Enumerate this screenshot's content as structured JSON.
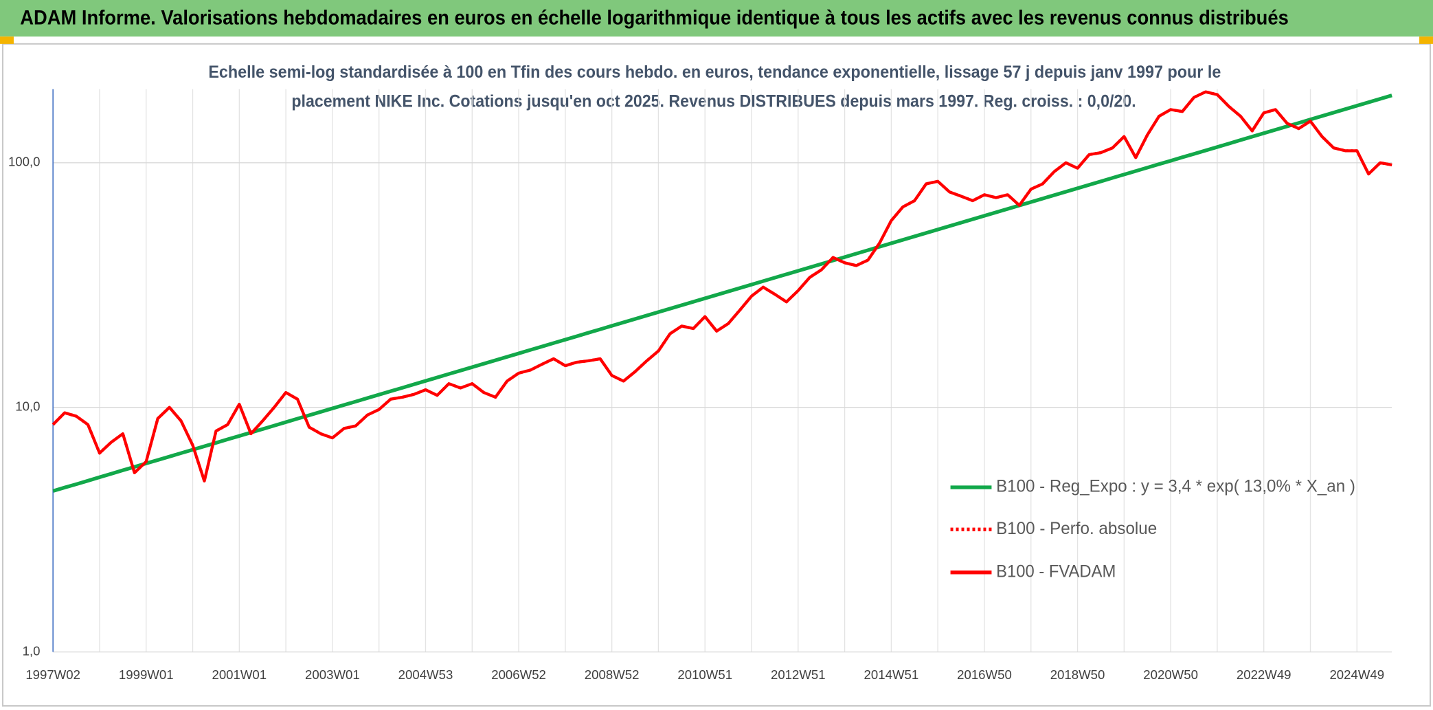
{
  "chart_data": {
    "type": "line",
    "title": "ADAM Informe. Valorisations hebdomadaires en euros en échelle logarithmique identique à tous les actifs avec les revenus connus distribués",
    "subtitle": [
      "Echelle semi-log standardisée à 100 en Tfin des cours hebdo. en euros, tendance exponentielle, lissage 57 j depuis janv 1997 pour le",
      "placement NIKE Inc. Cotations jusqu'en oct 2025. Revenus DISTRIBUES depuis mars 1997. Reg. croiss. : 0,0/20."
    ],
    "categories": [
      "1997W02",
      null,
      null,
      null,
      null,
      null,
      null,
      null,
      "1999W01",
      null,
      null,
      null,
      null,
      null,
      null,
      null,
      "2001W01",
      null,
      null,
      null,
      null,
      null,
      null,
      null,
      "2003W01",
      null,
      null,
      null,
      null,
      null,
      null,
      null,
      "2004W53",
      null,
      null,
      null,
      null,
      null,
      null,
      null,
      "2006W52",
      null,
      null,
      null,
      null,
      null,
      null,
      null,
      "2008W52",
      null,
      null,
      null,
      null,
      null,
      null,
      null,
      "2010W51",
      null,
      null,
      null,
      null,
      null,
      null,
      null,
      "2012W51",
      null,
      null,
      null,
      null,
      null,
      null,
      null,
      "2014W51",
      null,
      null,
      null,
      null,
      null,
      null,
      null,
      "2016W50",
      null,
      null,
      null,
      null,
      null,
      null,
      null,
      "2018W50",
      null,
      null,
      null,
      null,
      null,
      null,
      null,
      "2020W50",
      null,
      null,
      null,
      null,
      null,
      null,
      null,
      "2022W49",
      null,
      null,
      null,
      null,
      null,
      null,
      null,
      "2024W49",
      null,
      null,
      null
    ],
    "series": [
      {
        "name": "B100 - Reg_Expo : y = 3,4 * exp( 13,0% *  X_an )",
        "color": "#12a84a",
        "line_style": "solid",
        "values": [
          4.55,
          4.7,
          4.85,
          5.01,
          5.18,
          5.35,
          5.53,
          5.71,
          5.9,
          6.09,
          6.29,
          6.5,
          6.71,
          6.93,
          7.16,
          7.4,
          7.64,
          7.89,
          8.15,
          8.42,
          8.7,
          8.99,
          9.28,
          9.59,
          9.9,
          10.23,
          10.56,
          10.91,
          11.27,
          11.64,
          12.02,
          12.42,
          12.83,
          13.25,
          13.69,
          14.14,
          14.6,
          15.08,
          15.58,
          16.09,
          16.62,
          17.17,
          17.73,
          18.32,
          18.92,
          19.54,
          20.19,
          20.85,
          21.54,
          22.25,
          22.98,
          23.74,
          24.52,
          25.33,
          26.16,
          27.02,
          27.91,
          28.83,
          29.78,
          30.76,
          31.77,
          32.82,
          33.9,
          35.01,
          36.16,
          37.35,
          38.58,
          39.85,
          41.16,
          42.52,
          43.92,
          45.36,
          46.86,
          48.4,
          50.0,
          51.64,
          53.34,
          55.1,
          56.91,
          58.78,
          60.72,
          62.72,
          64.78,
          66.91,
          69.11,
          71.39,
          73.74,
          76.16,
          78.67,
          81.26,
          83.93,
          86.7,
          89.55,
          92.5,
          95.54,
          98.69,
          101.9,
          105.3,
          108.7,
          112.3,
          116.0,
          119.8,
          123.8,
          127.9,
          132.1,
          136.4,
          140.9,
          145.5,
          150.3,
          155.3,
          160.4,
          165.7,
          171.1,
          176.7,
          182.6,
          188.6
        ]
      },
      {
        "name": "B100 - Perfo. absolue",
        "color": "#ff0000",
        "line_style": "dotted",
        "values": [
          8.5,
          9.5,
          9.2,
          8.5,
          6.5,
          7.2,
          7.8,
          5.4,
          6.0,
          9.0,
          10.0,
          8.8,
          7.0,
          5.0,
          8.0,
          8.5,
          10.3,
          7.8,
          8.8,
          10.0,
          11.5,
          10.8,
          8.3,
          7.8,
          7.5,
          8.2,
          8.4,
          9.3,
          9.8,
          10.8,
          11.0,
          11.3,
          11.8,
          11.2,
          12.5,
          12.0,
          12.5,
          11.5,
          11.0,
          12.8,
          13.8,
          14.2,
          15.0,
          15.8,
          14.8,
          15.3,
          15.5,
          15.8,
          13.5,
          12.8,
          14.0,
          15.5,
          17.0,
          20.0,
          21.5,
          21.0,
          23.5,
          20.5,
          22.0,
          25.0,
          28.5,
          31.0,
          29.0,
          27.0,
          30.0,
          34.0,
          36.5,
          41.0,
          39.0,
          38.0,
          40.0,
          47.0,
          58.0,
          66.0,
          70.0,
          82.0,
          84.0,
          76.0,
          73.0,
          70.0,
          74.0,
          72.0,
          74.0,
          67.0,
          78.0,
          82.0,
          92.0,
          100.0,
          95.0,
          108.0,
          110.0,
          115.0,
          128.0,
          105.0,
          130.0,
          155.0,
          165.0,
          162.0,
          185.0,
          195.0,
          190.0,
          170.0,
          155.0,
          135.0,
          160.0,
          165.0,
          145.0,
          138.0,
          148.0,
          128.0,
          115.0,
          112.0,
          112.0,
          90.0,
          100.0,
          98.0
        ]
      },
      {
        "name": "B100 - FVADAM",
        "color": "#ff0000",
        "line_style": "solid",
        "values": [
          8.5,
          9.5,
          9.2,
          8.5,
          6.5,
          7.2,
          7.8,
          5.4,
          6.0,
          9.0,
          10.0,
          8.8,
          7.0,
          5.0,
          8.0,
          8.5,
          10.3,
          7.8,
          8.8,
          10.0,
          11.5,
          10.8,
          8.3,
          7.8,
          7.5,
          8.2,
          8.4,
          9.3,
          9.8,
          10.8,
          11.0,
          11.3,
          11.8,
          11.2,
          12.5,
          12.0,
          12.5,
          11.5,
          11.0,
          12.8,
          13.8,
          14.2,
          15.0,
          15.8,
          14.8,
          15.3,
          15.5,
          15.8,
          13.5,
          12.8,
          14.0,
          15.5,
          17.0,
          20.0,
          21.5,
          21.0,
          23.5,
          20.5,
          22.0,
          25.0,
          28.5,
          31.0,
          29.0,
          27.0,
          30.0,
          34.0,
          36.5,
          41.0,
          39.0,
          38.0,
          40.0,
          47.0,
          58.0,
          66.0,
          70.0,
          82.0,
          84.0,
          76.0,
          73.0,
          70.0,
          74.0,
          72.0,
          74.0,
          67.0,
          78.0,
          82.0,
          92.0,
          100.0,
          95.0,
          108.0,
          110.0,
          115.0,
          128.0,
          105.0,
          130.0,
          155.0,
          165.0,
          162.0,
          185.0,
          195.0,
          190.0,
          170.0,
          155.0,
          135.0,
          160.0,
          165.0,
          145.0,
          138.0,
          148.0,
          128.0,
          115.0,
          112.0,
          112.0,
          90.0,
          100.0,
          98.0
        ]
      }
    ],
    "ylim": [
      1,
      200
    ],
    "log_y": true,
    "yticks": [
      {
        "value": 1,
        "label": "1,0"
      },
      {
        "value": 10,
        "label": "10,0"
      },
      {
        "value": 100,
        "label": "100,0"
      }
    ],
    "grid": true,
    "legend": "lower right"
  }
}
